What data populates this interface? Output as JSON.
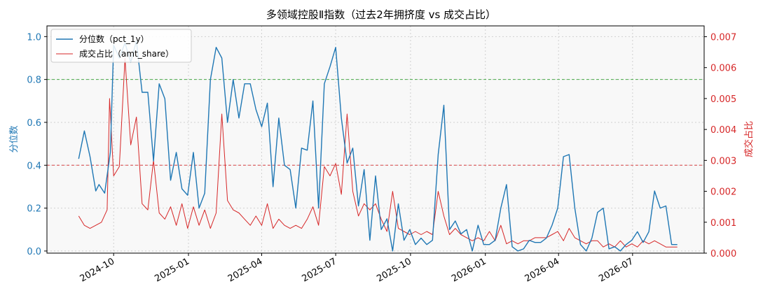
{
  "chart_data": {
    "type": "line",
    "title": "多领域控股Ⅱ指数（过去2年拥挤度 vs 成交占比）",
    "ylabel_left": "分位数",
    "ylabel_right": "成交占比",
    "ylim_left": [
      -0.01,
      1.05
    ],
    "ylim_right": [
      0,
      0.00735
    ],
    "yticks_left": [
      "0.0",
      "0.2",
      "0.4",
      "0.6",
      "0.8",
      "1.0"
    ],
    "yticks_right": [
      "0.000",
      "0.001",
      "0.002",
      "0.003",
      "0.004",
      "0.005",
      "0.006",
      "0.007"
    ],
    "xlim": [
      "2024-07-11",
      "2026-09-27"
    ],
    "xticks": [
      "2024-10",
      "2025-01",
      "2025-04",
      "2025-07",
      "2025-10",
      "2026-01",
      "2026-04",
      "2026-07"
    ],
    "grid": true,
    "legend_position": "top-left",
    "hlines": [
      {
        "axis": "left",
        "y": 0.8,
        "color": "#2ca02c",
        "style": "dashed"
      },
      {
        "axis": "left",
        "y": 0.4,
        "color": "#d62728",
        "style": "dashed"
      }
    ],
    "colors": {
      "pct": "#1f77b4",
      "share": "#d62728"
    },
    "series": [
      {
        "name": "分位数（pct_1y）",
        "axis": "left",
        "color": "#1f77b4",
        "x": [
          "2024-08-19",
          "2024-08-26",
          "2024-09-02",
          "2024-09-09",
          "2024-09-13",
          "2024-09-20",
          "2024-09-27",
          "2024-10-01",
          "2024-10-08",
          "2024-10-15",
          "2024-10-22",
          "2024-10-29",
          "2024-11-05",
          "2024-11-12",
          "2024-11-19",
          "2024-11-26",
          "2024-12-03",
          "2024-12-10",
          "2024-12-17",
          "2024-12-24",
          "2024-12-31",
          "2025-01-07",
          "2025-01-14",
          "2025-01-21",
          "2025-01-28",
          "2025-02-04",
          "2025-02-11",
          "2025-02-18",
          "2025-02-25",
          "2025-03-04",
          "2025-03-11",
          "2025-03-18",
          "2025-03-25",
          "2025-04-01",
          "2025-04-08",
          "2025-04-15",
          "2025-04-22",
          "2025-04-29",
          "2025-05-06",
          "2025-05-13",
          "2025-05-20",
          "2025-05-27",
          "2025-06-03",
          "2025-06-10",
          "2025-06-17",
          "2025-06-24",
          "2025-07-01",
          "2025-07-08",
          "2025-07-15",
          "2025-07-22",
          "2025-07-29",
          "2025-08-05",
          "2025-08-12",
          "2025-08-19",
          "2025-08-26",
          "2025-09-02",
          "2025-09-09",
          "2025-09-16",
          "2025-09-23",
          "2025-09-30",
          "2025-10-07",
          "2025-10-14",
          "2025-10-21",
          "2025-10-28",
          "2025-11-04",
          "2025-11-11",
          "2025-11-18",
          "2025-11-25",
          "2025-12-02",
          "2025-12-09",
          "2025-12-16",
          "2025-12-23",
          "2025-12-30",
          "2026-01-06",
          "2026-01-13",
          "2026-01-20",
          "2026-01-27",
          "2026-02-03",
          "2026-02-10",
          "2026-02-17",
          "2026-02-24",
          "2026-03-03",
          "2026-03-10",
          "2026-03-17",
          "2026-03-24",
          "2026-03-31",
          "2026-04-07",
          "2026-04-14",
          "2026-04-21",
          "2026-04-28",
          "2026-05-05",
          "2026-05-12",
          "2026-05-19",
          "2026-05-26",
          "2026-06-02",
          "2026-06-09",
          "2026-06-16",
          "2026-06-23",
          "2026-06-30",
          "2026-07-07",
          "2026-07-14",
          "2026-07-21",
          "2026-07-28",
          "2026-08-04",
          "2026-08-11",
          "2026-08-18",
          "2026-08-25"
        ],
        "values": [
          0.43,
          0.56,
          0.44,
          0.28,
          0.31,
          0.27,
          0.46,
          0.96,
          0.9,
          0.97,
          0.88,
          0.98,
          0.74,
          0.74,
          0.42,
          0.78,
          0.71,
          0.33,
          0.46,
          0.29,
          0.26,
          0.46,
          0.2,
          0.27,
          0.8,
          0.95,
          0.9,
          0.6,
          0.8,
          0.62,
          0.78,
          0.78,
          0.66,
          0.58,
          0.69,
          0.3,
          0.62,
          0.4,
          0.38,
          0.2,
          0.48,
          0.47,
          0.7,
          0.2,
          0.78,
          0.86,
          0.95,
          0.62,
          0.41,
          0.48,
          0.21,
          0.38,
          0.05,
          0.35,
          0.1,
          0.15,
          0.0,
          0.22,
          0.05,
          0.1,
          0.03,
          0.06,
          0.03,
          0.05,
          0.45,
          0.68,
          0.1,
          0.14,
          0.08,
          0.1,
          0.0,
          0.12,
          0.03,
          0.03,
          0.05,
          0.2,
          0.31,
          0.02,
          0.0,
          0.01,
          0.05,
          0.04,
          0.04,
          0.06,
          0.12,
          0.2,
          0.44,
          0.45,
          0.2,
          0.03,
          0.0,
          0.06,
          0.18,
          0.2,
          0.01,
          0.02,
          0.0,
          0.03,
          0.05,
          0.09,
          0.04,
          0.09,
          0.28,
          0.2,
          0.21,
          0.03,
          0.03
        ]
      },
      {
        "name": "成交占比（amt_share）",
        "axis": "right",
        "color": "#d62728",
        "x": [
          "2024-08-19",
          "2024-08-26",
          "2024-09-02",
          "2024-09-09",
          "2024-09-16",
          "2024-09-23",
          "2024-09-26",
          "2024-10-01",
          "2024-10-08",
          "2024-10-15",
          "2024-10-22",
          "2024-10-29",
          "2024-11-05",
          "2024-11-12",
          "2024-11-19",
          "2024-11-26",
          "2024-12-03",
          "2024-12-10",
          "2024-12-17",
          "2024-12-24",
          "2024-12-31",
          "2025-01-07",
          "2025-01-14",
          "2025-01-21",
          "2025-01-28",
          "2025-02-04",
          "2025-02-11",
          "2025-02-18",
          "2025-02-25",
          "2025-03-04",
          "2025-03-11",
          "2025-03-18",
          "2025-03-25",
          "2025-04-01",
          "2025-04-08",
          "2025-04-15",
          "2025-04-22",
          "2025-04-29",
          "2025-05-06",
          "2025-05-13",
          "2025-05-20",
          "2025-05-27",
          "2025-06-03",
          "2025-06-10",
          "2025-06-17",
          "2025-06-24",
          "2025-07-01",
          "2025-07-08",
          "2025-07-15",
          "2025-07-22",
          "2025-07-29",
          "2025-08-05",
          "2025-08-12",
          "2025-08-19",
          "2025-08-26",
          "2025-09-02",
          "2025-09-09",
          "2025-09-16",
          "2025-09-23",
          "2025-09-30",
          "2025-10-07",
          "2025-10-14",
          "2025-10-21",
          "2025-10-28",
          "2025-11-04",
          "2025-11-11",
          "2025-11-18",
          "2025-11-25",
          "2025-12-02",
          "2025-12-09",
          "2025-12-16",
          "2025-12-23",
          "2025-12-30",
          "2026-01-06",
          "2026-01-13",
          "2026-01-20",
          "2026-01-27",
          "2026-02-03",
          "2026-02-10",
          "2026-02-17",
          "2026-02-24",
          "2026-03-03",
          "2026-03-10",
          "2026-03-17",
          "2026-03-24",
          "2026-03-31",
          "2026-04-07",
          "2026-04-14",
          "2026-04-21",
          "2026-04-28",
          "2026-05-05",
          "2026-05-12",
          "2026-05-19",
          "2026-05-26",
          "2026-06-02",
          "2026-06-09",
          "2026-06-16",
          "2026-06-23",
          "2026-06-30",
          "2026-07-07",
          "2026-07-14",
          "2026-07-21",
          "2026-07-28",
          "2026-08-04",
          "2026-08-11",
          "2026-08-18",
          "2026-08-25"
        ],
        "values": [
          0.0012,
          0.0009,
          0.0008,
          0.0009,
          0.001,
          0.0014,
          0.005,
          0.0025,
          0.0028,
          0.0063,
          0.0035,
          0.0044,
          0.0016,
          0.0014,
          0.003,
          0.0013,
          0.0011,
          0.0015,
          0.0009,
          0.0016,
          0.0008,
          0.0015,
          0.0009,
          0.0014,
          0.0008,
          0.0013,
          0.0045,
          0.0017,
          0.0014,
          0.0013,
          0.0011,
          0.0009,
          0.0012,
          0.0009,
          0.0016,
          0.0008,
          0.0011,
          0.0009,
          0.0008,
          0.0009,
          0.0008,
          0.0011,
          0.0015,
          0.0009,
          0.0028,
          0.0025,
          0.0029,
          0.0019,
          0.0045,
          0.002,
          0.0012,
          0.0016,
          0.0014,
          0.0016,
          0.0011,
          0.0007,
          0.002,
          0.0008,
          0.0007,
          0.0006,
          0.0007,
          0.0006,
          0.0007,
          0.0006,
          0.002,
          0.0012,
          0.0006,
          0.0008,
          0.0006,
          0.0005,
          0.0004,
          0.0005,
          0.0004,
          0.0007,
          0.0004,
          0.0009,
          0.0003,
          0.0004,
          0.0003,
          0.0004,
          0.0004,
          0.0005,
          0.0005,
          0.0005,
          0.0006,
          0.0007,
          0.0004,
          0.0008,
          0.0005,
          0.0004,
          0.0003,
          0.0004,
          0.0004,
          0.0002,
          0.0003,
          0.0002,
          0.0004,
          0.0002,
          0.0003,
          0.0002,
          0.0004,
          0.0003,
          0.0004,
          0.0003,
          0.0002,
          0.0002,
          0.0002
        ]
      }
    ]
  }
}
